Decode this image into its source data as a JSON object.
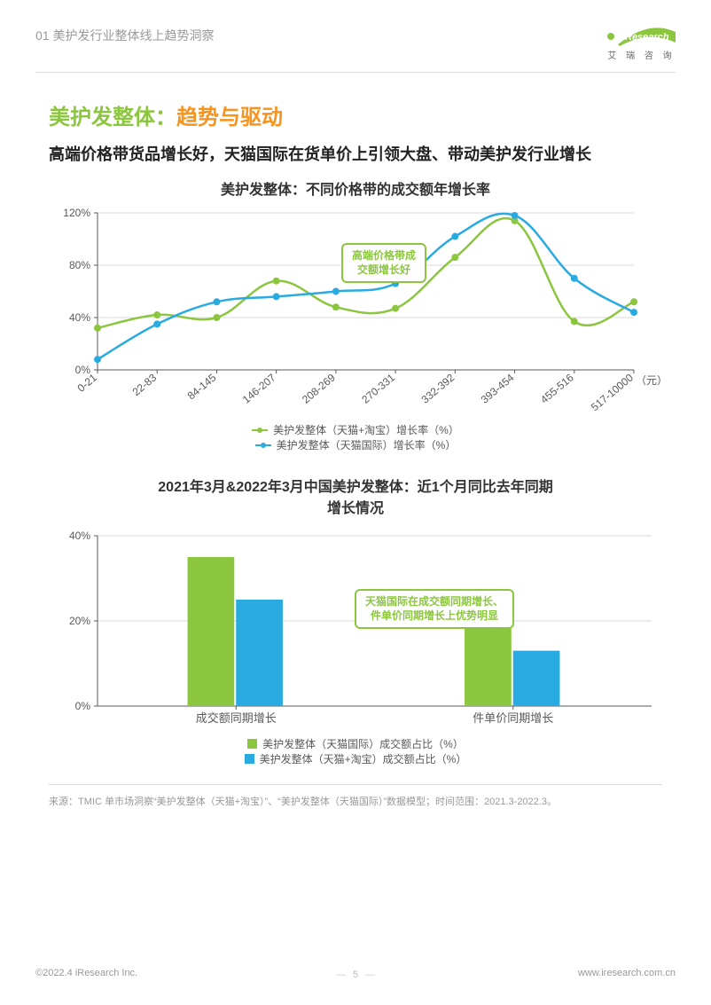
{
  "header": {
    "breadcrumb": "01 美护发行业整体线上趋势洞察",
    "logo_text": "Research",
    "logo_sub": "艾 瑞 咨 询"
  },
  "title": {
    "prefix": "美护发整体：",
    "suffix": "趋势与驱动"
  },
  "subtitle": "高端价格带货品增长好，天猫国际在货单价上引领大盘、带动美护发行业增长",
  "chart1": {
    "title": "美护发整体：不同价格带的成交额年增长率",
    "type": "line",
    "x_categories": [
      "0-21",
      "22-83",
      "84-145",
      "146-207",
      "208-269",
      "270-331",
      "332-392",
      "393-454",
      "455-516",
      "517-10000"
    ],
    "x_unit": "（元）",
    "y_ticks": [
      "0%",
      "40%",
      "80%",
      "120%"
    ],
    "ylim": [
      0,
      120
    ],
    "grid_color": "#d9d9d9",
    "axis_color": "#595959",
    "series": [
      {
        "name": "美护发整体（天猫+淘宝）增长率（%）",
        "color": "#8cc63f",
        "marker": "circle",
        "values": [
          32,
          42,
          40,
          68,
          48,
          47,
          86,
          114,
          37,
          52
        ]
      },
      {
        "name": "美护发整体（天猫国际）增长率（%）",
        "color": "#29abe2",
        "marker": "circle",
        "values": [
          8,
          35,
          52,
          56,
          60,
          66,
          102,
          118,
          70,
          44
        ]
      }
    ],
    "callout": "高端价格带成\n交额增长好",
    "callout_color": "#8cc63f"
  },
  "chart2": {
    "title1": "2021年3月&2022年3月中国美护发整体：近1个月同比去年同期",
    "title2": "增长情况",
    "type": "bar",
    "x_categories": [
      "成交额同期增长",
      "件单价同期增长"
    ],
    "y_ticks": [
      "0%",
      "20%",
      "40%"
    ],
    "ylim": [
      0,
      40
    ],
    "grid_color": "#d9d9d9",
    "axis_color": "#595959",
    "bar_width": 0.35,
    "series": [
      {
        "name": "美护发整体（天猫国际）成交额占比（%）",
        "color": "#8cc63f",
        "values": [
          35,
          20
        ]
      },
      {
        "name": "美护发整体（天猫+淘宝）成交额占比（%）",
        "color": "#29abe2",
        "values": [
          25,
          13
        ]
      }
    ],
    "callout": "天猫国际在成交额同期增长、\n件单价同期增长上优势明显",
    "callout_color": "#8cc63f"
  },
  "source": "来源：TMIC 单市场洞察“美护发整体（天猫+淘宝）”、“美护发整体（天猫国际）”数据模型；时间范围：2021.3-2022.3。",
  "footer": {
    "copyright": "©2022.4 iResearch Inc.",
    "url": "www.iresearch.com.cn",
    "page": "5"
  }
}
